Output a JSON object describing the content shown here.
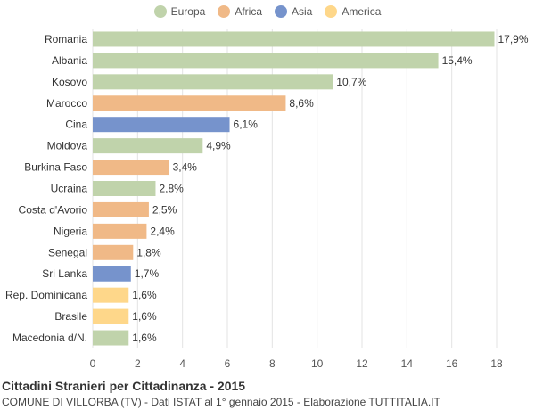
{
  "legend": [
    {
      "name": "Europa",
      "color": "#c0d3ab"
    },
    {
      "name": "Africa",
      "color": "#f0b987"
    },
    {
      "name": "Asia",
      "color": "#7693cc"
    },
    {
      "name": "America",
      "color": "#fed78a"
    }
  ],
  "title": "Cittadini Stranieri per Cittadinanza - 2015",
  "subtitle": "COMUNE DI VILLORBA (TV) - Dati ISTAT al 1° gennaio 2015 - Elaborazione TUTTITALIA.IT",
  "chart_data": {
    "type": "bar",
    "orientation": "horizontal",
    "categories": [
      "Romania",
      "Albania",
      "Kosovo",
      "Marocco",
      "Cina",
      "Moldova",
      "Burkina Faso",
      "Ucraina",
      "Costa d'Avorio",
      "Nigeria",
      "Senegal",
      "Sri Lanka",
      "Rep. Dominicana",
      "Brasile",
      "Macedonia d/N."
    ],
    "values": [
      17.9,
      15.4,
      10.7,
      8.6,
      6.1,
      4.9,
      3.4,
      2.8,
      2.5,
      2.4,
      1.8,
      1.7,
      1.6,
      1.6,
      1.6
    ],
    "value_labels": [
      "17,9%",
      "15,4%",
      "10,7%",
      "8,6%",
      "6,1%",
      "4,9%",
      "3,4%",
      "2,8%",
      "2,5%",
      "2,4%",
      "1,8%",
      "1,7%",
      "1,6%",
      "1,6%",
      "1,6%"
    ],
    "groups": [
      "Europa",
      "Europa",
      "Europa",
      "Africa",
      "Asia",
      "Europa",
      "Africa",
      "Europa",
      "Africa",
      "Africa",
      "Africa",
      "Asia",
      "America",
      "America",
      "Europa"
    ],
    "xlim": [
      0,
      18
    ],
    "xticks": [
      0,
      2,
      4,
      6,
      8,
      10,
      12,
      14,
      16,
      18
    ],
    "grid": true,
    "legend_position": "top-center"
  }
}
